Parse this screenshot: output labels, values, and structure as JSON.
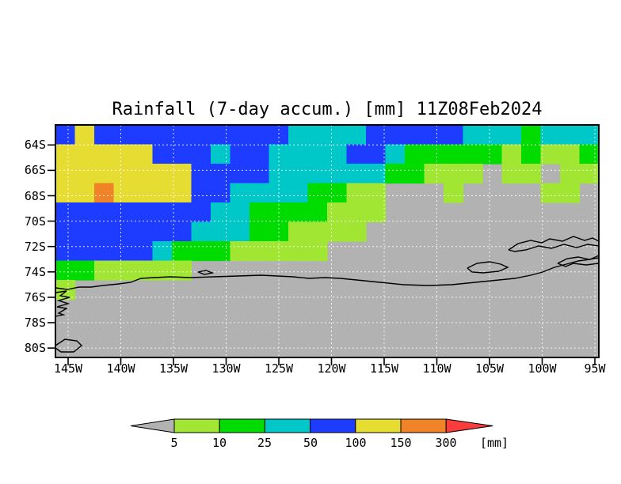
{
  "chart_data": {
    "type": "heatmap",
    "title": "Rainfall (7-day accum.) [mm] 11Z08Feb2024",
    "unit": "mm",
    "axes": {
      "x_ticks": [
        "145W",
        "140W",
        "135W",
        "130W",
        "125W",
        "120W",
        "115W",
        "110W",
        "105W",
        "100W",
        "95W"
      ],
      "y_ticks": [
        "64S",
        "66S",
        "68S",
        "70S",
        "72S",
        "74S",
        "76S",
        "78S",
        "80S"
      ],
      "grid": "dashed-white"
    },
    "bands": [
      {
        "key": "lt5",
        "range": "<5",
        "color": "#b2b2b2"
      },
      {
        "key": "5-10",
        "range": "5-10",
        "color": "#a0e632"
      },
      {
        "key": "10-25",
        "range": "10-25",
        "color": "#00dc00"
      },
      {
        "key": "25-50",
        "range": "25-50",
        "color": "#00c8c8"
      },
      {
        "key": "50-100",
        "range": "50-100",
        "color": "#1e3cff"
      },
      {
        "key": "100-150",
        "range": "100-150",
        "color": "#e6dc32"
      },
      {
        "key": "150-300",
        "range": "150-300",
        "color": "#f08228"
      },
      {
        "key": "gt300",
        "range": ">300",
        "color": "#fa3c3c"
      }
    ],
    "colorbar": {
      "levels": [
        "5",
        "10",
        "25",
        "50",
        "100",
        "150",
        "300"
      ],
      "unit_label": "[mm]",
      "segment_colors": [
        "#a0e632",
        "#00dc00",
        "#00c8c8",
        "#1e3cff",
        "#e6dc32",
        "#f08228"
      ],
      "left_arrow_color": "#b2b2b2",
      "right_arrow_color": "#fa3c3c"
    },
    "field_grid": {
      "cols": 28,
      "rows": 12,
      "legend": "band index per cell, 0=<5mm 1=5-10 2=10-25 3=25-50 4=50-100 5=100-150 6=150-300 7=>300",
      "band_values": [
        [
          4,
          5,
          4,
          4,
          4,
          4,
          4,
          4,
          4,
          4,
          4,
          4,
          3,
          3,
          3,
          3,
          4,
          4,
          4,
          4,
          4,
          3,
          3,
          3,
          2,
          3,
          3,
          3
        ],
        [
          5,
          5,
          5,
          5,
          5,
          4,
          4,
          4,
          3,
          4,
          4,
          3,
          3,
          3,
          3,
          4,
          4,
          3,
          2,
          2,
          2,
          2,
          2,
          1,
          2,
          1,
          1,
          2
        ],
        [
          5,
          5,
          5,
          5,
          5,
          5,
          5,
          4,
          4,
          4,
          4,
          3,
          3,
          3,
          3,
          3,
          3,
          2,
          2,
          1,
          1,
          1,
          0,
          1,
          1,
          0,
          1,
          1
        ],
        [
          5,
          5,
          6,
          5,
          5,
          5,
          5,
          4,
          4,
          3,
          3,
          3,
          3,
          2,
          2,
          1,
          1,
          0,
          0,
          0,
          1,
          0,
          0,
          0,
          0,
          1,
          1,
          0
        ],
        [
          4,
          4,
          4,
          4,
          4,
          4,
          4,
          4,
          3,
          3,
          2,
          2,
          2,
          2,
          1,
          1,
          1,
          0,
          0,
          0,
          0,
          0,
          0,
          0,
          0,
          0,
          0,
          0
        ],
        [
          4,
          4,
          4,
          4,
          4,
          4,
          4,
          3,
          3,
          3,
          2,
          2,
          1,
          1,
          1,
          1,
          0,
          0,
          0,
          0,
          0,
          0,
          0,
          0,
          0,
          0,
          0,
          0
        ],
        [
          4,
          4,
          4,
          4,
          4,
          3,
          2,
          2,
          2,
          1,
          1,
          1,
          1,
          1,
          0,
          0,
          0,
          0,
          0,
          0,
          0,
          0,
          0,
          0,
          0,
          0,
          0,
          0
        ],
        [
          2,
          2,
          1,
          1,
          1,
          1,
          1,
          0,
          0,
          0,
          0,
          0,
          0,
          0,
          0,
          0,
          0,
          0,
          0,
          0,
          0,
          0,
          0,
          0,
          0,
          0,
          0,
          0
        ],
        [
          1,
          0,
          0,
          0,
          0,
          0,
          0,
          0,
          0,
          0,
          0,
          0,
          0,
          0,
          0,
          0,
          0,
          0,
          0,
          0,
          0,
          0,
          0,
          0,
          0,
          0,
          0,
          0
        ],
        [
          0,
          0,
          0,
          0,
          0,
          0,
          0,
          0,
          0,
          0,
          0,
          0,
          0,
          0,
          0,
          0,
          0,
          0,
          0,
          0,
          0,
          0,
          0,
          0,
          0,
          0,
          0,
          0
        ],
        [
          0,
          0,
          0,
          0,
          0,
          0,
          0,
          0,
          0,
          0,
          0,
          0,
          0,
          0,
          0,
          0,
          0,
          0,
          0,
          0,
          0,
          0,
          0,
          0,
          0,
          0,
          0,
          0
        ],
        [
          0,
          0,
          0,
          0,
          0,
          0,
          0,
          0,
          0,
          0,
          0,
          0,
          0,
          0,
          0,
          0,
          0,
          0,
          0,
          0,
          0,
          0,
          0,
          0,
          0,
          0,
          0,
          0
        ]
      ]
    },
    "coastline": {
      "main": [
        [
          0,
          206
        ],
        [
          15,
          208
        ],
        [
          30,
          205
        ],
        [
          45,
          205
        ],
        [
          60,
          203
        ],
        [
          80,
          201
        ],
        [
          95,
          199
        ],
        [
          108,
          194
        ],
        [
          125,
          193
        ],
        [
          145,
          192
        ],
        [
          170,
          193
        ],
        [
          200,
          192
        ],
        [
          230,
          191
        ],
        [
          260,
          190
        ],
        [
          280,
          191
        ],
        [
          300,
          192
        ],
        [
          320,
          194
        ],
        [
          340,
          193
        ],
        [
          360,
          194
        ],
        [
          380,
          196
        ],
        [
          410,
          199
        ],
        [
          440,
          202
        ],
        [
          470,
          203
        ],
        [
          500,
          202
        ],
        [
          520,
          200
        ],
        [
          540,
          198
        ],
        [
          560,
          196
        ],
        [
          580,
          194
        ],
        [
          600,
          190
        ],
        [
          615,
          186
        ],
        [
          630,
          180
        ],
        [
          645,
          176
        ],
        [
          660,
          172
        ],
        [
          675,
          170
        ],
        [
          686,
          165
        ]
      ],
      "islands": [
        [
          [
            180,
            186
          ],
          [
            190,
            184
          ],
          [
            198,
            187
          ],
          [
            188,
            189
          ],
          [
            180,
            186
          ]
        ],
        [
          [
            520,
            181
          ],
          [
            532,
            175
          ],
          [
            548,
            173
          ],
          [
            562,
            176
          ],
          [
            571,
            180
          ],
          [
            560,
            185
          ],
          [
            540,
            187
          ],
          [
            526,
            186
          ],
          [
            520,
            181
          ]
        ],
        [
          [
            572,
            158
          ],
          [
            584,
            150
          ],
          [
            600,
            146
          ],
          [
            614,
            149
          ],
          [
            624,
            144
          ],
          [
            640,
            147
          ],
          [
            654,
            141
          ],
          [
            668,
            146
          ],
          [
            678,
            143
          ],
          [
            686,
            147
          ],
          [
            686,
            153
          ],
          [
            672,
            151
          ],
          [
            658,
            155
          ],
          [
            642,
            151
          ],
          [
            626,
            156
          ],
          [
            610,
            153
          ],
          [
            594,
            158
          ],
          [
            580,
            160
          ],
          [
            572,
            158
          ]
        ],
        [
          [
            634,
            175
          ],
          [
            646,
            169
          ],
          [
            660,
            167
          ],
          [
            674,
            170
          ],
          [
            686,
            168
          ],
          [
            686,
            175
          ],
          [
            670,
            177
          ],
          [
            654,
            175
          ],
          [
            644,
            179
          ],
          [
            634,
            175
          ]
        ],
        [
          [
            0,
            212
          ],
          [
            14,
            210
          ],
          [
            6,
            216
          ],
          [
            18,
            218
          ],
          [
            4,
            222
          ],
          [
            16,
            226
          ],
          [
            2,
            230
          ],
          [
            14,
            232
          ],
          [
            4,
            238
          ],
          [
            10,
            240
          ],
          [
            0,
            242
          ]
        ],
        [
          [
            0,
            279
          ],
          [
            12,
            271
          ],
          [
            27,
            273
          ],
          [
            33,
            279
          ],
          [
            23,
            287
          ],
          [
            7,
            287
          ],
          [
            0,
            282
          ]
        ]
      ]
    }
  }
}
